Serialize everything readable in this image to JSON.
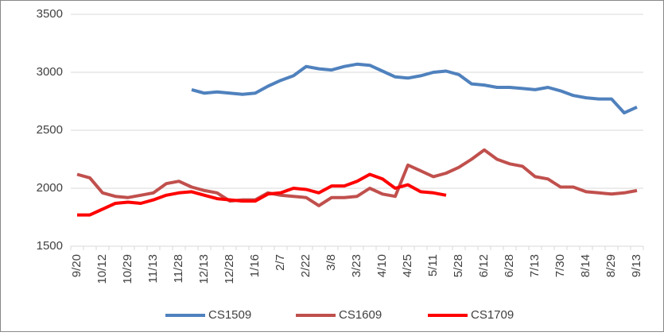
{
  "chart_data": {
    "type": "line",
    "categories": [
      "9/20",
      null,
      "10/12",
      null,
      "10/29",
      null,
      "11/13",
      null,
      "11/28",
      null,
      "12/13",
      null,
      "12/28",
      null,
      "1/16",
      null,
      "2/7",
      null,
      "2/22",
      null,
      "3/8",
      null,
      "3/23",
      null,
      "4/10",
      null,
      "4/25",
      null,
      "5/11",
      null,
      "5/28",
      null,
      "6/12",
      null,
      "6/28",
      null,
      "7/13",
      null,
      "7/30",
      null,
      "8/14",
      null,
      "8/29",
      null,
      "9/13"
    ],
    "series": [
      {
        "name": "CS1509",
        "color": "#4f81bd",
        "values": [
          null,
          null,
          null,
          null,
          null,
          null,
          null,
          null,
          null,
          2850,
          2820,
          2830,
          2820,
          2810,
          2820,
          2880,
          2930,
          2970,
          3050,
          3030,
          3020,
          3050,
          3070,
          3060,
          3010,
          2960,
          2950,
          2970,
          3000,
          3010,
          2980,
          2900,
          2890,
          2870,
          2870,
          2860,
          2850,
          2870,
          2840,
          2800,
          2780,
          2770,
          2770,
          2650,
          2700
        ]
      },
      {
        "name": "CS1609",
        "color": "#c0504d",
        "values": [
          2120,
          2090,
          1960,
          1930,
          1920,
          1940,
          1960,
          2040,
          2060,
          2010,
          1980,
          1960,
          1890,
          1900,
          1900,
          1960,
          1940,
          1930,
          1920,
          1850,
          1920,
          1920,
          1930,
          2000,
          1950,
          1930,
          2200,
          2150,
          2100,
          2130,
          2180,
          2250,
          2330,
          2250,
          2210,
          2190,
          2100,
          2080,
          2010,
          2010,
          1970,
          1960,
          1950,
          1960,
          1980
        ]
      },
      {
        "name": "CS1709",
        "color": "#ff0000",
        "values": [
          1770,
          1770,
          1820,
          1870,
          1880,
          1870,
          1900,
          1940,
          1960,
          1970,
          1940,
          1910,
          1900,
          1890,
          1890,
          1950,
          1960,
          2000,
          1990,
          1960,
          2020,
          2020,
          2060,
          2120,
          2080,
          2000,
          2030,
          1970,
          1960,
          1940,
          null,
          null,
          null,
          null,
          null,
          null,
          null,
          null,
          null,
          null,
          null,
          null,
          null,
          null,
          null
        ]
      }
    ],
    "ylim": [
      1500,
      3500
    ],
    "yticks": [
      1500,
      2000,
      2500,
      3000,
      3500
    ],
    "grid": true
  }
}
